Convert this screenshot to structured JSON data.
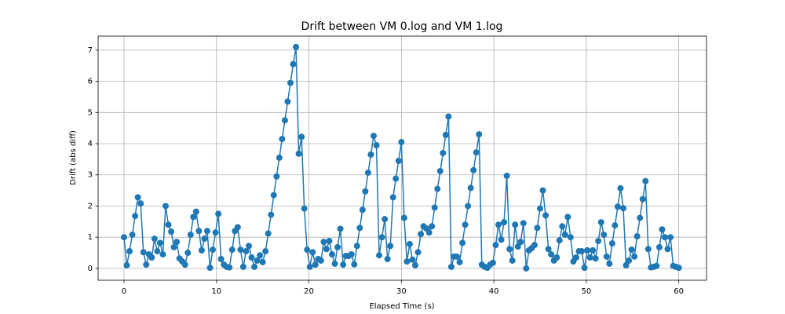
{
  "chart_data": {
    "type": "line",
    "title": "Drift between VM 0.log and VM 1.log",
    "x_label": "Elapsed Time (s)",
    "y_label": "Drift (abs diff)",
    "grid": true,
    "xlim": [
      -2.8,
      63
    ],
    "ylim": [
      -0.38,
      7.45
    ],
    "xticks": [
      0,
      10,
      20,
      30,
      40,
      50,
      60
    ],
    "yticks": [
      0,
      1,
      2,
      3,
      4,
      5,
      6,
      7
    ],
    "x": [
      0,
      0.3,
      0.6,
      0.9,
      1.2,
      1.5,
      1.8,
      2.1,
      2.4,
      2.7,
      3,
      3.3,
      3.6,
      3.9,
      4.2,
      4.5,
      4.8,
      5.1,
      5.4,
      5.7,
      6,
      6.3,
      6.6,
      6.9,
      7.2,
      7.5,
      7.8,
      8.1,
      8.4,
      8.7,
      9,
      9.3,
      9.6,
      9.9,
      10.2,
      10.5,
      10.8,
      11.1,
      11.4,
      11.7,
      12,
      12.3,
      12.6,
      12.9,
      13.2,
      13.5,
      13.8,
      14.1,
      14.4,
      14.7,
      15,
      15.3,
      15.6,
      15.9,
      16.2,
      16.5,
      16.8,
      17.1,
      17.4,
      17.7,
      18,
      18.3,
      18.6,
      18.9,
      19.2,
      19.5,
      19.8,
      20.1,
      20.4,
      20.7,
      21,
      21.3,
      21.6,
      21.9,
      22.2,
      22.5,
      22.8,
      23.1,
      23.4,
      23.7,
      24,
      24.3,
      24.6,
      24.9,
      25.2,
      25.5,
      25.8,
      26.1,
      26.4,
      26.7,
      27,
      27.3,
      27.6,
      27.9,
      28.2,
      28.5,
      28.8,
      29.1,
      29.4,
      29.7,
      30,
      30.3,
      30.6,
      30.9,
      31.2,
      31.5,
      31.8,
      32.1,
      32.4,
      32.7,
      33,
      33.3,
      33.6,
      33.9,
      34.2,
      34.5,
      34.8,
      35.1,
      35.4,
      35.7,
      36,
      36.3,
      36.6,
      36.9,
      37.2,
      37.5,
      37.8,
      38.1,
      38.4,
      38.7,
      39,
      39.3,
      39.6,
      39.9,
      40.2,
      40.5,
      40.8,
      41.1,
      41.4,
      41.7,
      42,
      42.3,
      42.6,
      42.9,
      43.2,
      43.5,
      43.8,
      44.1,
      44.4,
      44.7,
      45,
      45.3,
      45.6,
      45.9,
      46.2,
      46.5,
      46.8,
      47.1,
      47.4,
      47.7,
      48,
      48.3,
      48.6,
      48.9,
      49.2,
      49.5,
      49.8,
      50.1,
      50.4,
      50.7,
      51,
      51.3,
      51.6,
      51.9,
      52.2,
      52.5,
      52.8,
      53.1,
      53.4,
      53.7,
      54,
      54.3,
      54.6,
      54.9,
      55.2,
      55.5,
      55.8,
      56.1,
      56.4,
      56.7,
      57,
      57.3,
      57.6,
      57.9,
      58.2,
      58.5,
      58.8,
      59.1,
      59.4,
      59.7,
      60
    ],
    "series": [
      {
        "name": "drift",
        "color": "#1f77b4",
        "values": [
          1.0,
          0.1,
          0.55,
          1.08,
          1.68,
          2.28,
          2.08,
          0.52,
          0.12,
          0.45,
          0.35,
          0.95,
          0.55,
          0.82,
          0.45,
          2.0,
          1.4,
          1.18,
          0.68,
          0.85,
          0.32,
          0.22,
          0.12,
          0.5,
          1.08,
          1.65,
          1.82,
          1.2,
          0.58,
          0.95,
          1.2,
          0.02,
          0.6,
          1.15,
          1.75,
          0.3,
          0.12,
          0.05,
          0.03,
          0.6,
          1.2,
          1.32,
          0.6,
          0.05,
          0.55,
          0.72,
          0.35,
          0.05,
          0.25,
          0.42,
          0.2,
          0.55,
          1.12,
          1.72,
          2.35,
          2.95,
          3.55,
          4.15,
          4.75,
          5.35,
          5.95,
          6.55,
          7.1,
          3.68,
          4.22,
          1.92,
          0.6,
          0.05,
          0.52,
          0.12,
          0.3,
          0.25,
          0.85,
          0.62,
          0.88,
          0.45,
          0.15,
          0.68,
          1.27,
          0.12,
          0.4,
          0.4,
          0.45,
          0.13,
          0.72,
          1.3,
          1.88,
          2.47,
          3.07,
          3.65,
          4.25,
          3.95,
          0.42,
          1.0,
          1.58,
          0.3,
          0.72,
          2.28,
          2.88,
          3.45,
          4.05,
          1.62,
          0.22,
          0.78,
          0.28,
          0.1,
          0.52,
          1.1,
          1.35,
          1.28,
          1.15,
          1.35,
          1.95,
          2.55,
          3.12,
          3.7,
          4.28,
          4.87,
          0.05,
          0.38,
          0.38,
          0.2,
          0.82,
          1.4,
          2.0,
          2.58,
          3.15,
          3.72,
          4.3,
          0.12,
          0.05,
          0.02,
          0.12,
          0.18,
          0.75,
          1.4,
          0.92,
          1.48,
          2.97,
          0.62,
          0.25,
          1.4,
          0.7,
          0.85,
          1.45,
          0.0,
          0.58,
          0.65,
          0.75,
          1.3,
          1.92,
          2.5,
          1.7,
          0.62,
          0.45,
          0.25,
          0.35,
          0.9,
          1.35,
          1.08,
          1.65,
          1.0,
          0.22,
          0.35,
          0.55,
          0.55,
          0.02,
          0.58,
          0.35,
          0.58,
          0.32,
          0.88,
          1.48,
          1.08,
          0.38,
          0.15,
          0.8,
          1.38,
          1.98,
          2.57,
          1.93,
          0.1,
          0.25,
          0.6,
          0.38,
          1.03,
          1.62,
          2.22,
          2.8,
          0.62,
          0.03,
          0.05,
          0.08,
          0.68,
          1.25,
          1.0,
          0.62,
          1.0,
          0.08,
          0.05,
          0.02
        ]
      }
    ]
  }
}
